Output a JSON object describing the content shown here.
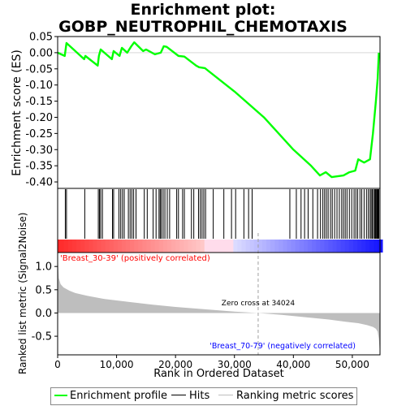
{
  "title_line1": "Enrichment plot:",
  "title_line2": "GOBP_NEUTROPHIL_CHEMOTAXIS",
  "ylabel_top": "Enrichment score (ES)",
  "ylabel_bottom": "Ranked list metric (Signal2Noise)",
  "xlabel": "Rank in Ordered Dataset",
  "legend": {
    "enrichment_profile": "Enrichment profile",
    "hits": "Hits",
    "ranking_metric": "Ranking metric scores"
  },
  "annotations": {
    "zero_cross": "Zero cross at 34024",
    "positive": "'Breast_30-39' (positively correlated)",
    "negative": "'Breast_70-79' (negatively correlated)"
  },
  "colors": {
    "enrichment_line": "#00ff00",
    "positive_label": "#ff0000",
    "negative_label": "#0000ff",
    "metric_fill": "#bebebe"
  },
  "chart_data": {
    "type": "line",
    "es_axis": {
      "ylim": [
        -0.42,
        0.05
      ],
      "ticks": [
        0.05,
        0.0,
        -0.05,
        -0.1,
        -0.15,
        -0.2,
        -0.25,
        -0.3,
        -0.35,
        -0.4
      ],
      "tick_labels": [
        "0.05",
        "0.00",
        "-0.05",
        "-0.10",
        "-0.15",
        "-0.20",
        "-0.25",
        "-0.30",
        "-0.35",
        "-0.40"
      ]
    },
    "metric_axis": {
      "ylim": [
        -0.9,
        1.3
      ],
      "ticks": [
        1.0,
        0.5,
        0.0,
        -0.5
      ],
      "tick_labels": [
        "1.0",
        "0.5",
        "0.0",
        "-0.5"
      ]
    },
    "x_axis": {
      "xlim": [
        0,
        54700
      ],
      "ticks": [
        0,
        10000,
        20000,
        30000,
        40000,
        50000
      ],
      "tick_labels": [
        "0",
        "10,000",
        "20,000",
        "30,000",
        "40,000",
        "50,000"
      ]
    },
    "zero_cross": 34024,
    "enrichment_profile": {
      "x": [
        0,
        1200,
        1500,
        4500,
        4700,
        6800,
        7000,
        7300,
        9200,
        9500,
        10500,
        10900,
        11800,
        12500,
        13000,
        14500,
        15000,
        16500,
        17500,
        18000,
        18500,
        20500,
        21500,
        23500,
        24000,
        25000,
        30000,
        35000,
        40000,
        43000,
        44500,
        45500,
        46500,
        48500,
        49500,
        50500,
        51000,
        52000,
        53000,
        53500,
        54000,
        54300,
        54500
      ],
      "y": [
        0.0,
        -0.01,
        0.03,
        -0.02,
        -0.01,
        -0.04,
        -0.01,
        0.01,
        -0.02,
        0.005,
        -0.01,
        0.015,
        0.0,
        0.02,
        0.032,
        0.005,
        0.01,
        -0.005,
        0.0,
        0.02,
        0.018,
        -0.01,
        -0.012,
        -0.04,
        -0.045,
        -0.048,
        -0.12,
        -0.2,
        -0.3,
        -0.35,
        -0.38,
        -0.37,
        -0.385,
        -0.38,
        -0.37,
        -0.365,
        -0.33,
        -0.34,
        -0.33,
        -0.25,
        -0.15,
        -0.08,
        0.0
      ]
    },
    "hits": [
      1300,
      1500,
      4600,
      6900,
      7100,
      7300,
      7600,
      9300,
      9500,
      10400,
      10700,
      11000,
      11300,
      12000,
      12300,
      12600,
      12900,
      13300,
      14700,
      15200,
      16200,
      16700,
      17200,
      17400,
      17600,
      17900,
      18200,
      18600,
      19000,
      20200,
      20500,
      21200,
      21500,
      22700,
      23100,
      23900,
      24200,
      24500,
      24800,
      25100,
      26400,
      28200,
      29500,
      30200,
      31600,
      32400,
      33000,
      39400,
      40500,
      41300,
      41900,
      42500,
      43300,
      44100,
      44600,
      45000,
      45300,
      45600,
      45900,
      46300,
      46600,
      47000,
      47400,
      47800,
      48200,
      48500,
      48800,
      49100,
      49500,
      49900,
      50300,
      50600,
      50900,
      51300,
      51600,
      52000,
      52400,
      52700,
      53000,
      53200,
      53400,
      53600,
      53800,
      53950,
      54100,
      54200,
      54300,
      54400,
      54500
    ],
    "metric": {
      "x": [
        0,
        200,
        500,
        1000,
        2000,
        3000,
        5000,
        8000,
        12000,
        16000,
        20000,
        25000,
        30000,
        34024,
        38000,
        42000,
        46000,
        49000,
        51000,
        52500,
        53500,
        54000,
        54300,
        54500,
        54700
      ],
      "y": [
        1.25,
        0.75,
        0.62,
        0.55,
        0.48,
        0.43,
        0.37,
        0.3,
        0.24,
        0.18,
        0.13,
        0.08,
        0.03,
        0.0,
        -0.04,
        -0.09,
        -0.14,
        -0.19,
        -0.22,
        -0.26,
        -0.3,
        -0.34,
        -0.4,
        -0.55,
        -0.88
      ]
    }
  }
}
